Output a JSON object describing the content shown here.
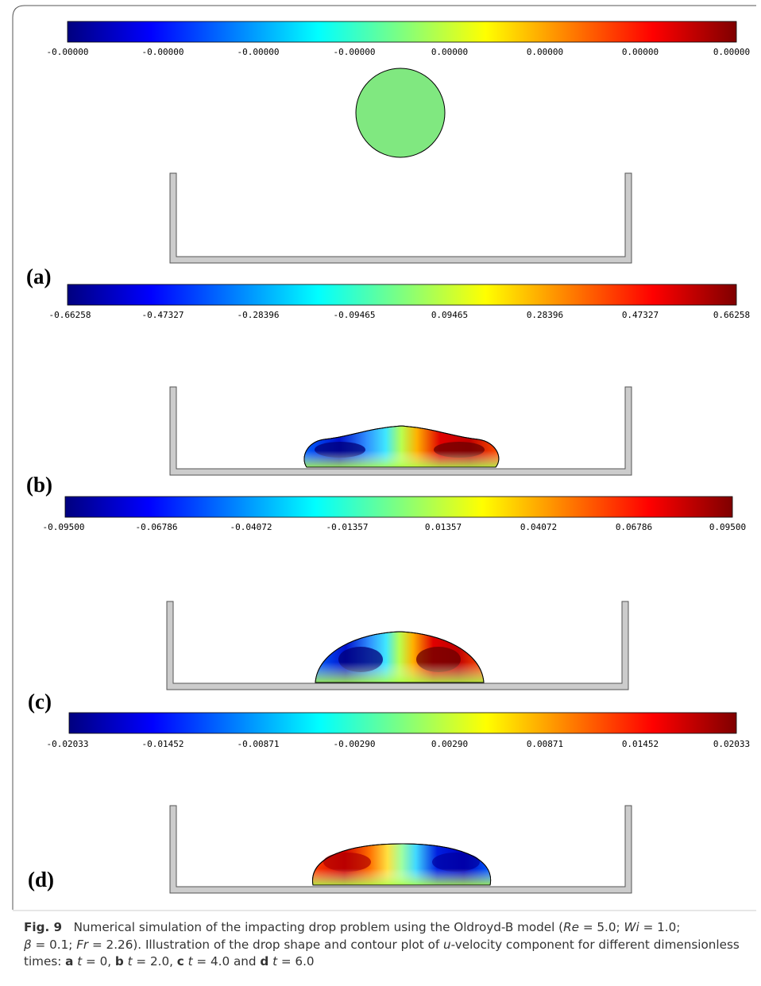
{
  "figure": {
    "panels": [
      {
        "letter": "(a)",
        "colorbar_ticks": [
          "-0.00000",
          "-0.00000",
          "-0.00000",
          "-0.00000",
          "0.00000",
          "0.00000",
          "0.00000",
          "0.00000"
        ],
        "shape": "circle",
        "color_pattern": "uniform"
      },
      {
        "letter": "(b)",
        "colorbar_ticks": [
          "-0.66258",
          "-0.47327",
          "-0.28396",
          "-0.09465",
          "0.09465",
          "0.28396",
          "0.47327",
          "0.66258"
        ],
        "shape": "spread-drop",
        "color_pattern": "neg-left-pos-right"
      },
      {
        "letter": "(c)",
        "colorbar_ticks": [
          "-0.09500",
          "-0.06786",
          "-0.04072",
          "-0.01357",
          "0.01357",
          "0.04072",
          "0.06786",
          "0.09500"
        ],
        "shape": "dome",
        "color_pattern": "neg-left-pos-right"
      },
      {
        "letter": "(d)",
        "colorbar_ticks": [
          "-0.02033",
          "-0.01452",
          "-0.00871",
          "-0.00290",
          "0.00290",
          "0.00871",
          "0.01452",
          "0.02033"
        ],
        "shape": "flat-dome",
        "color_pattern": "pos-left-neg-right"
      }
    ],
    "colormap": [
      "#00007f",
      "#0000ff",
      "#007fff",
      "#00ffff",
      "#7fff7f",
      "#ffff00",
      "#ff7f00",
      "#ff0000",
      "#7f0000"
    ],
    "container_color": "#cccccc"
  },
  "caption": {
    "label": "Fig. 9",
    "text1": "Numerical simulation of the impacting drop problem using the Oldroyd-B model (",
    "Re": "Re",
    "Re_val": " = 5.0; ",
    "Wi": "Wi",
    "Wi_val": " = 1.0;",
    "beta": "β",
    "beta_val": " = 0.1; ",
    "Fr": "Fr",
    "Fr_val": " = 2.26). Illustration of the drop shape and contour plot of ",
    "u": "u",
    "text2": "-velocity component for different dimensionless times: ",
    "a": "a",
    "t1": "t",
    "v1": " = 0, ",
    "b": "b",
    "t2": "t",
    "v2": " = 2.0, ",
    "c": "c",
    "t3": "t",
    "v3": " = 4.0 and ",
    "d": "d",
    "t4": "t",
    "v4": " = 6.0"
  }
}
